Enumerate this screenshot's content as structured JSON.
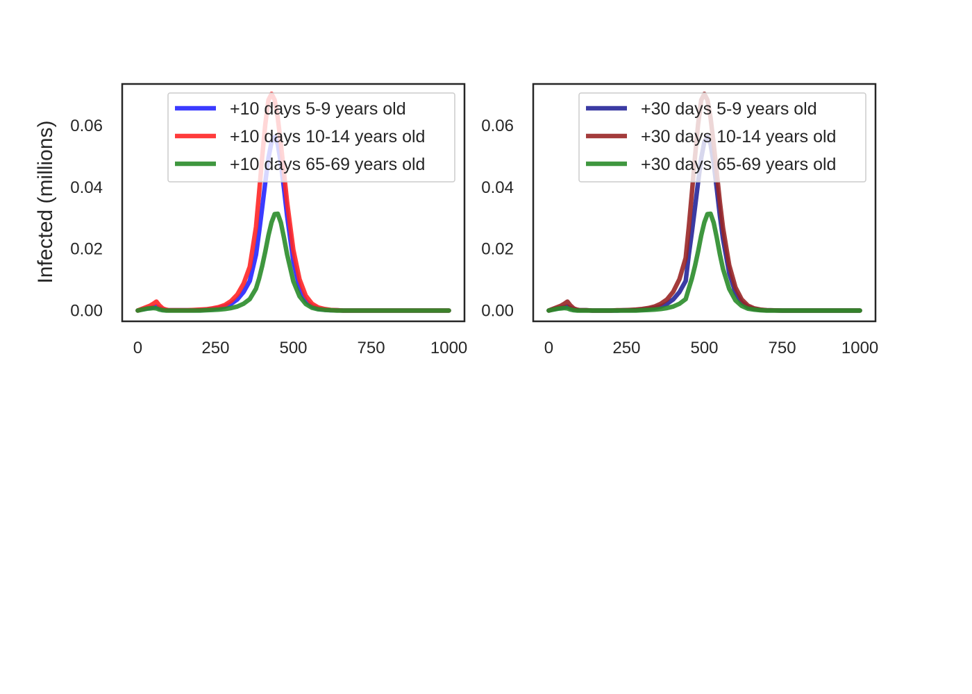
{
  "ylabel": "Infected (millions)",
  "chart_data": [
    {
      "type": "line",
      "xlim": [
        -50,
        1050
      ],
      "ylim": [
        -0.0035,
        0.0735
      ],
      "xticks": [
        0,
        250,
        500,
        750,
        1000
      ],
      "xtick_labels": [
        "0",
        "250",
        "500",
        "750",
        "1000"
      ],
      "yticks": [
        0.0,
        0.02,
        0.04,
        0.06
      ],
      "ytick_labels": [
        "0.00",
        "0.02",
        "0.04",
        "0.06"
      ],
      "grid": false,
      "legend_position": "top-right",
      "x": [
        0,
        10,
        20,
        30,
        40,
        50,
        60,
        70,
        80,
        90,
        100,
        120,
        140,
        160,
        180,
        200,
        220,
        240,
        260,
        280,
        300,
        320,
        340,
        360,
        380,
        390,
        400,
        410,
        420,
        430,
        440,
        450,
        460,
        470,
        480,
        500,
        520,
        540,
        560,
        580,
        600,
        620,
        640,
        660,
        680,
        700,
        750,
        800,
        850,
        900,
        950,
        1000
      ],
      "series": [
        {
          "name": "+10 days 5-9 years old",
          "color": "#2626ff",
          "values": [
            0.0,
            0.0003,
            0.0005,
            0.0007,
            0.0009,
            0.0011,
            0.0013,
            0.0008,
            0.0004,
            0.0002,
            0.0001,
            0.0001,
            0.0001,
            0.0001,
            0.0001,
            0.0002,
            0.0003,
            0.0005,
            0.0008,
            0.0013,
            0.0022,
            0.0036,
            0.006,
            0.0096,
            0.0181,
            0.0255,
            0.0335,
            0.0417,
            0.0495,
            0.0547,
            0.0563,
            0.0539,
            0.0477,
            0.0395,
            0.0307,
            0.016,
            0.0074,
            0.0032,
            0.0014,
            0.0006,
            0.0003,
            0.0001,
            0.0001,
            0.0,
            0.0,
            0.0,
            0.0,
            0.0,
            0.0,
            0.0,
            0.0,
            0.0
          ]
        },
        {
          "name": "+10 days 10-14 years old",
          "color": "#ff2626",
          "values": [
            0.0,
            0.0004,
            0.0008,
            0.0012,
            0.0016,
            0.0022,
            0.0029,
            0.0016,
            0.0007,
            0.0003,
            0.0001,
            0.0001,
            0.0001,
            0.0001,
            0.0002,
            0.0003,
            0.0004,
            0.0007,
            0.0011,
            0.0018,
            0.0031,
            0.0052,
            0.0087,
            0.0142,
            0.0271,
            0.0382,
            0.0499,
            0.0605,
            0.0683,
            0.0703,
            0.0683,
            0.0625,
            0.054,
            0.0446,
            0.0351,
            0.0197,
            0.0101,
            0.0048,
            0.0022,
            0.001,
            0.0005,
            0.0002,
            0.0001,
            0.0,
            0.0,
            0.0,
            0.0,
            0.0,
            0.0,
            0.0,
            0.0,
            0.0
          ]
        },
        {
          "name": "+10 days 65-69 years old",
          "color": "#2a8c2a",
          "values": [
            0.0,
            0.0002,
            0.0004,
            0.0006,
            0.0007,
            0.0008,
            0.0007,
            0.0003,
            0.0001,
            0.0,
            0.0,
            0.0,
            0.0,
            0.0,
            0.0,
            0.0,
            0.0001,
            0.0002,
            0.0003,
            0.0005,
            0.0008,
            0.0013,
            0.0022,
            0.0037,
            0.0071,
            0.0104,
            0.0145,
            0.0192,
            0.0244,
            0.0286,
            0.0313,
            0.0314,
            0.0285,
            0.0236,
            0.0182,
            0.0095,
            0.0046,
            0.0021,
            0.0009,
            0.0004,
            0.0002,
            0.0001,
            0.0,
            0.0,
            0.0,
            0.0,
            0.0,
            0.0,
            0.0,
            0.0,
            0.0,
            0.0
          ]
        }
      ]
    },
    {
      "type": "line",
      "xlim": [
        -50,
        1050
      ],
      "ylim": [
        -0.0035,
        0.0735
      ],
      "xticks": [
        0,
        250,
        500,
        750,
        1000
      ],
      "xtick_labels": [
        "0",
        "250",
        "500",
        "750",
        "1000"
      ],
      "yticks": [
        0.0,
        0.02,
        0.04,
        0.06
      ],
      "ytick_labels": [
        "0.00",
        "0.02",
        "0.04",
        "0.06"
      ],
      "grid": false,
      "legend_position": "top-right",
      "x": [
        0,
        10,
        20,
        30,
        40,
        50,
        60,
        70,
        80,
        90,
        100,
        120,
        140,
        160,
        180,
        200,
        220,
        240,
        260,
        280,
        300,
        320,
        340,
        360,
        380,
        400,
        420,
        440,
        450,
        460,
        470,
        480,
        490,
        500,
        510,
        520,
        530,
        540,
        550,
        560,
        580,
        600,
        620,
        640,
        660,
        680,
        700,
        750,
        800,
        850,
        900,
        950,
        1000
      ],
      "series": [
        {
          "name": "+30 days 5-9 years old",
          "color": "#262699",
          "values": [
            0.0,
            0.0003,
            0.0005,
            0.0007,
            0.0009,
            0.0011,
            0.0013,
            0.0008,
            0.0004,
            0.0002,
            0.0001,
            0.0001,
            0.0,
            0.0,
            0.0,
            0.0,
            0.0,
            0.0001,
            0.0001,
            0.0002,
            0.0003,
            0.0005,
            0.0008,
            0.0013,
            0.0022,
            0.0036,
            0.006,
            0.0096,
            0.0181,
            0.0255,
            0.0335,
            0.0417,
            0.0495,
            0.0547,
            0.0563,
            0.0539,
            0.0477,
            0.0395,
            0.0307,
            0.0232,
            0.0121,
            0.0058,
            0.0026,
            0.0011,
            0.0005,
            0.0002,
            0.0001,
            0.0,
            0.0,
            0.0,
            0.0,
            0.0,
            0.0
          ]
        },
        {
          "name": "+30 days 10-14 years old",
          "color": "#992626",
          "values": [
            0.0,
            0.0004,
            0.0008,
            0.0012,
            0.0016,
            0.0022,
            0.0029,
            0.0016,
            0.0007,
            0.0003,
            0.0001,
            0.0001,
            0.0,
            0.0,
            0.0,
            0.0,
            0.0001,
            0.0001,
            0.0002,
            0.0003,
            0.0005,
            0.0008,
            0.0013,
            0.0022,
            0.0036,
            0.0061,
            0.0102,
            0.0171,
            0.0271,
            0.0382,
            0.0499,
            0.0605,
            0.0683,
            0.0703,
            0.0683,
            0.0625,
            0.054,
            0.0446,
            0.0351,
            0.0268,
            0.0147,
            0.0075,
            0.0036,
            0.0016,
            0.0007,
            0.0003,
            0.0001,
            0.0,
            0.0,
            0.0,
            0.0,
            0.0,
            0.0
          ]
        },
        {
          "name": "+30 days 65-69 years old",
          "color": "#2a8c2a",
          "values": [
            0.0,
            0.0002,
            0.0004,
            0.0006,
            0.0007,
            0.0008,
            0.0007,
            0.0003,
            0.0001,
            0.0,
            0.0,
            0.0,
            0.0,
            0.0,
            0.0,
            0.0,
            0.0,
            0.0,
            0.0,
            0.0,
            0.0001,
            0.0002,
            0.0003,
            0.0005,
            0.0008,
            0.0013,
            0.0022,
            0.0037,
            0.0071,
            0.0104,
            0.0145,
            0.0192,
            0.0244,
            0.0286,
            0.0313,
            0.0314,
            0.0285,
            0.0236,
            0.0182,
            0.0135,
            0.007,
            0.0033,
            0.0015,
            0.0006,
            0.0003,
            0.0001,
            0.0,
            0.0,
            0.0,
            0.0,
            0.0,
            0.0,
            0.0
          ]
        }
      ]
    }
  ]
}
